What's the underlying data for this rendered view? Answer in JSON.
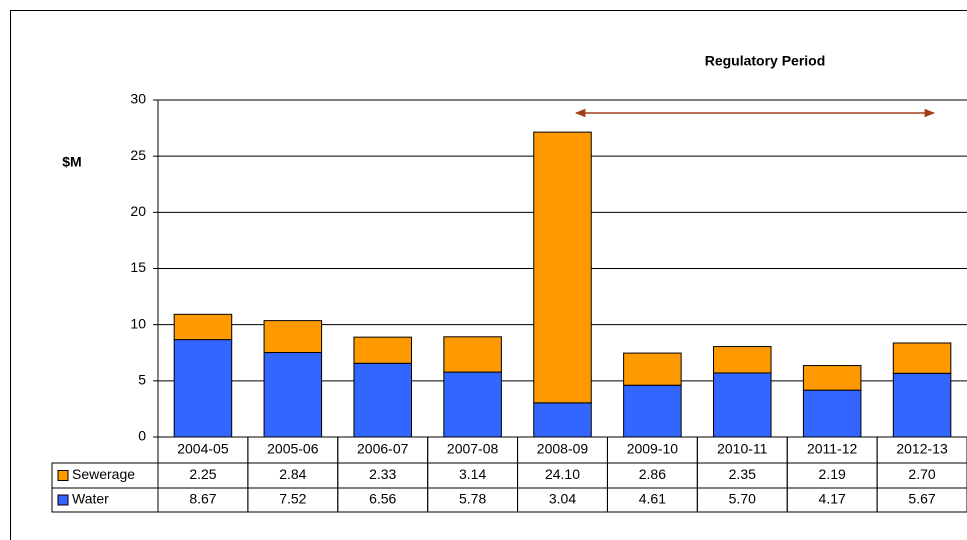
{
  "chart_data": {
    "type": "stacked_bar",
    "annotation": "Regulatory Period",
    "y_label": "$M",
    "categories": [
      "2004-05",
      "2005-06",
      "2006-07",
      "2007-08",
      "2008-09",
      "2009-10",
      "2010-11",
      "2011-12",
      "2012-13"
    ],
    "series": [
      {
        "name": "Sewerage",
        "color": "#ff9900",
        "values": [
          2.25,
          2.84,
          2.33,
          3.14,
          24.1,
          2.86,
          2.35,
          2.19,
          2.7
        ],
        "value_labels": [
          "2.25",
          "2.84",
          "2.33",
          "3.14",
          "24.10",
          "2.86",
          "2.35",
          "2.19",
          "2.70"
        ]
      },
      {
        "name": "Water",
        "color": "#3366ff",
        "values": [
          8.67,
          7.52,
          6.56,
          5.78,
          3.04,
          4.61,
          5.7,
          4.17,
          5.67
        ],
        "value_labels": [
          "8.67",
          "7.52",
          "6.56",
          "5.78",
          "3.04",
          "4.61",
          "5.70",
          "4.17",
          "5.67"
        ]
      }
    ],
    "ylim": [
      0,
      30
    ],
    "yticks": [
      0,
      5,
      10,
      15,
      20,
      25,
      30
    ],
    "grid": true
  }
}
